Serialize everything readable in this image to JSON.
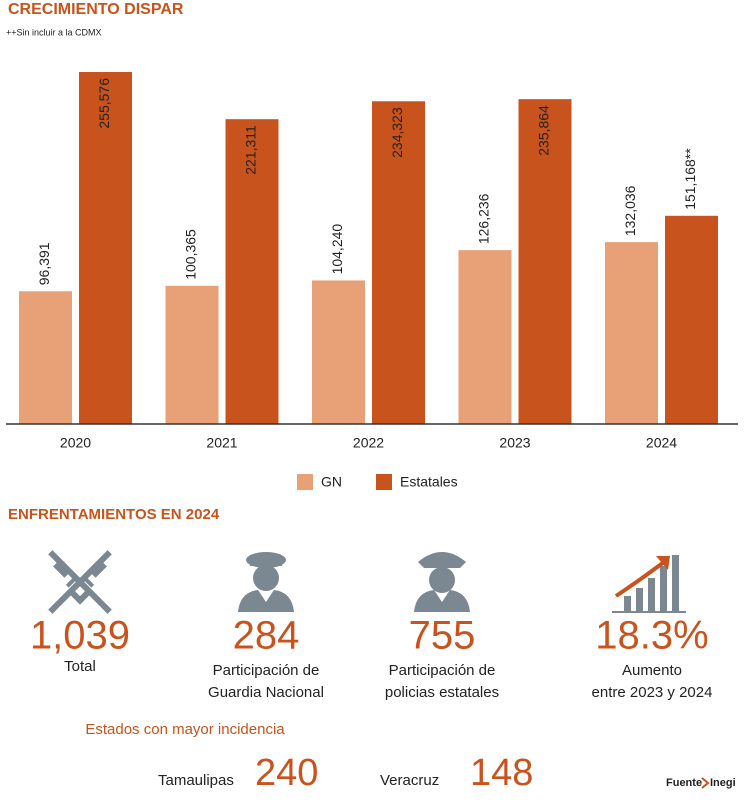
{
  "chart_data": {
    "type": "bar",
    "title": "CRECIMIENTO DISPAR",
    "note": "++Sin incluir a la CDMX",
    "categories": [
      "2020",
      "2021",
      "2022",
      "2023",
      "2024"
    ],
    "series": [
      {
        "name": "GN",
        "color": "#e8a077",
        "values": [
          96391,
          100365,
          104240,
          126236,
          132036
        ],
        "value_labels": [
          "96,391",
          "100,365",
          "104,240",
          "126,236",
          "132,036"
        ]
      },
      {
        "name": "Estatales",
        "color": "#c8531c",
        "values": [
          255576,
          221311,
          234323,
          235864,
          151168
        ],
        "value_labels": [
          "255,576",
          "221,311",
          "234,323",
          "235,864",
          "151,168**"
        ]
      }
    ]
  },
  "section": {
    "title": "ENFRENTAMIENTOS EN 2024",
    "stats": [
      {
        "value": "1,039",
        "caption": [
          "Total"
        ]
      },
      {
        "value": "284",
        "caption": [
          "Participación de",
          "Guardia Nacional"
        ]
      },
      {
        "value": "755",
        "caption": [
          "Participación de",
          "policias estatales"
        ]
      },
      {
        "value": "18.3%",
        "caption": [
          "Aumento",
          "entre 2023 y 2024"
        ]
      }
    ],
    "states_title": "Estados con mayor incidencia",
    "states": [
      {
        "name": "Tamaulipas",
        "value": "240"
      },
      {
        "name": "Veracruz",
        "value": "148"
      }
    ],
    "source_label": "Fuente",
    "source": "Inegi"
  }
}
